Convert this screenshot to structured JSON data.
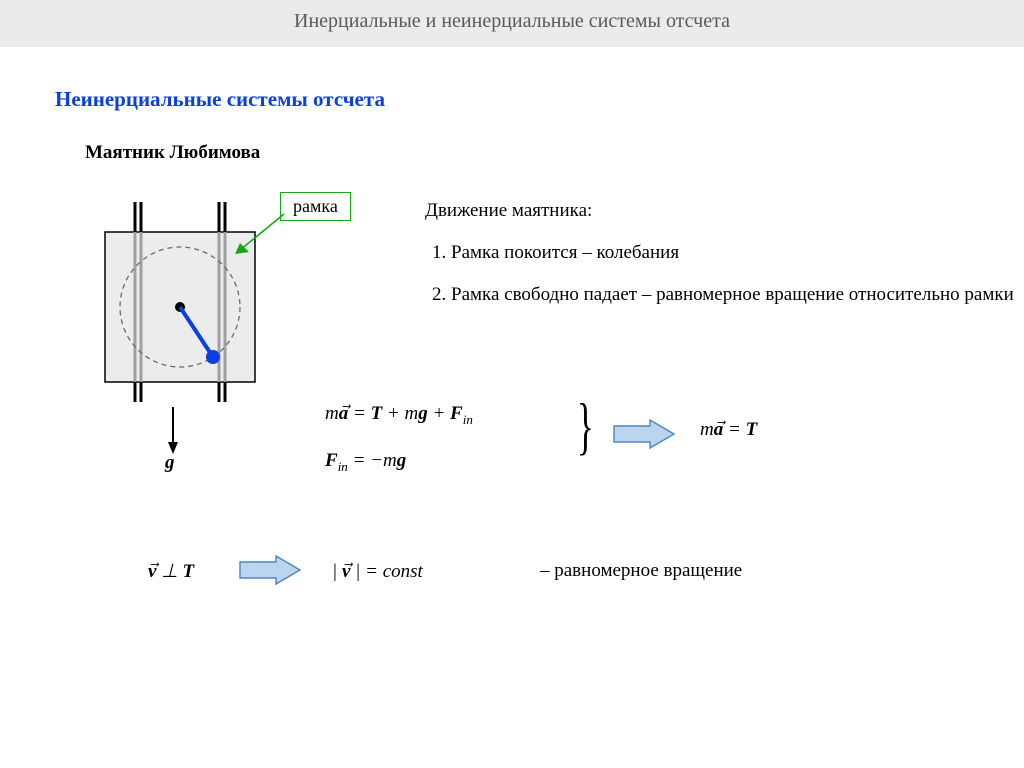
{
  "header": "Инерциальные и неинерциальные системы отсчета",
  "subtitle": "Неинерциальные системы отсчета",
  "section": "Маятник Любимова",
  "label_box": "рамка",
  "g_label": "g",
  "description": {
    "heading": "Движение маятника:",
    "items": [
      "Рамка покоится – колебания",
      "Рамка свободно падает – равномерное вращение относительно рамки"
    ]
  },
  "equations": {
    "eq1_html": "m<span class='bold'>a</span>&#x20D7; = <span class='bold'>T</span> + m<span class='bold'>g</span> + <span class='bold'>F</span><span class='sub'>in</span>",
    "eq2_html": "<span class='bold'>F</span><span class='sub'>in</span> = &minus;m<span class='bold'>g</span>",
    "result1_html": "m<span class='bold'>a</span>&#x20D7; = <span class='bold'>T</span>",
    "eq_left_html": "<span class='bold'>v</span>&#x20D7; &perp; <span class='bold'>T</span>",
    "eq_mid_html": "| <span class='bold'>v</span>&#x20D7; | = const",
    "eq_right_text": "– равномерное вращение"
  },
  "colors": {
    "header_bg": "#ebebeb",
    "header_text": "#595959",
    "subtitle_color": "#0b3fe0",
    "label_border": "#15a915",
    "arrow_green": "#15a915",
    "arrow_big_fill": "#9fc5e8",
    "arrow_big_stroke": "#3d85c6",
    "pendulum_line": "#0b3fe0",
    "pendulum_bob": "#0b3fe0",
    "frame_fill": "#ececec",
    "frame_stroke": "#000000"
  }
}
